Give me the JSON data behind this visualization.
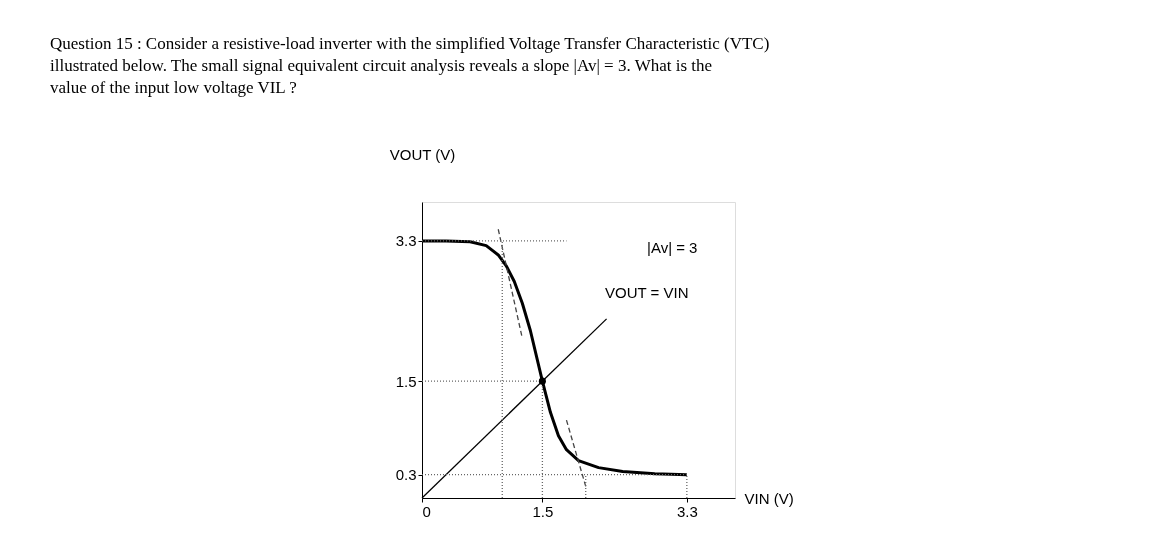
{
  "chart_data": {
    "type": "line",
    "title": "Question 15 : Consider a resistive-load inverter with the simplified Voltage Transfer Characteristic (VTC) illustrated below. The small signal equivalent circuit analysis reveals a slope |Av| = 3. What is the value of the input low voltage VIL ?",
    "xlabel": "VIN (V)",
    "ylabel": "VOUT (V)",
    "xlim": [
      0,
      3.9
    ],
    "ylim": [
      0,
      3.8
    ],
    "xticks": [
      0,
      1.5,
      3.3
    ],
    "yticks": [
      0.3,
      1.5,
      3.3
    ],
    "series": [
      {
        "color": "#000000",
        "line_style": "solid",
        "x": [
          0,
          0.3,
          0.6,
          0.8,
          0.95,
          1.05,
          1.15,
          1.25,
          1.35,
          1.5,
          1.6,
          1.7,
          1.8,
          1.95,
          2.2,
          2.5,
          2.9,
          3.3
        ],
        "values": [
          3.3,
          3.3,
          3.29,
          3.24,
          3.12,
          2.98,
          2.78,
          2.5,
          2.15,
          1.5,
          1.1,
          0.8,
          0.62,
          0.48,
          0.39,
          0.34,
          0.31,
          0.3
        ]
      },
      {
        "color": "#000000",
        "line_style": "solid",
        "x": [
          0,
          2.3
        ],
        "values": [
          0,
          2.3
        ]
      },
      {
        "type": "line",
        "color": "#444444",
        "line_style": "dashed",
        "x": [
          0.95,
          1.25
        ],
        "values": [
          3.45,
          2.05
        ]
      },
      {
        "type": "line",
        "color": "#444444",
        "line_style": "dashed",
        "x": [
          1.8,
          2.04
        ],
        "values": [
          1.0,
          0.15
        ]
      },
      {
        "type": "line",
        "color": "#666666",
        "line_style": "dotted",
        "x": [
          0,
          1.8
        ],
        "values": [
          3.3,
          3.3
        ]
      },
      {
        "type": "line",
        "color": "#666666",
        "line_style": "dotted",
        "x": [
          1.0,
          1.0
        ],
        "values": [
          0,
          3.3
        ]
      },
      {
        "type": "line",
        "color": "#666666",
        "line_style": "dotted",
        "x": [
          0,
          1.5
        ],
        "values": [
          1.5,
          1.5
        ]
      },
      {
        "type": "line",
        "color": "#666666",
        "line_style": "dotted",
        "x": [
          1.5,
          1.5
        ],
        "values": [
          0,
          1.5
        ]
      },
      {
        "type": "line",
        "color": "#666666",
        "line_style": "dotted",
        "x": [
          0,
          3.3
        ],
        "values": [
          0.3,
          0.3
        ]
      },
      {
        "type": "line",
        "color": "#666666",
        "line_style": "dotted",
        "x": [
          3.3,
          3.3
        ],
        "values": [
          0,
          0.3
        ]
      },
      {
        "type": "line",
        "color": "#666666",
        "line_style": "dotted",
        "x": [
          2.04,
          2.04
        ],
        "values": [
          0,
          0.3
        ]
      },
      {
        "type": "scatter",
        "color": "#000000",
        "marker": "circle",
        "x": [
          1.5
        ],
        "values": [
          1.5
        ]
      }
    ],
    "annotations": [
      "|Av| = 3",
      "VOUT = VIN"
    ]
  }
}
